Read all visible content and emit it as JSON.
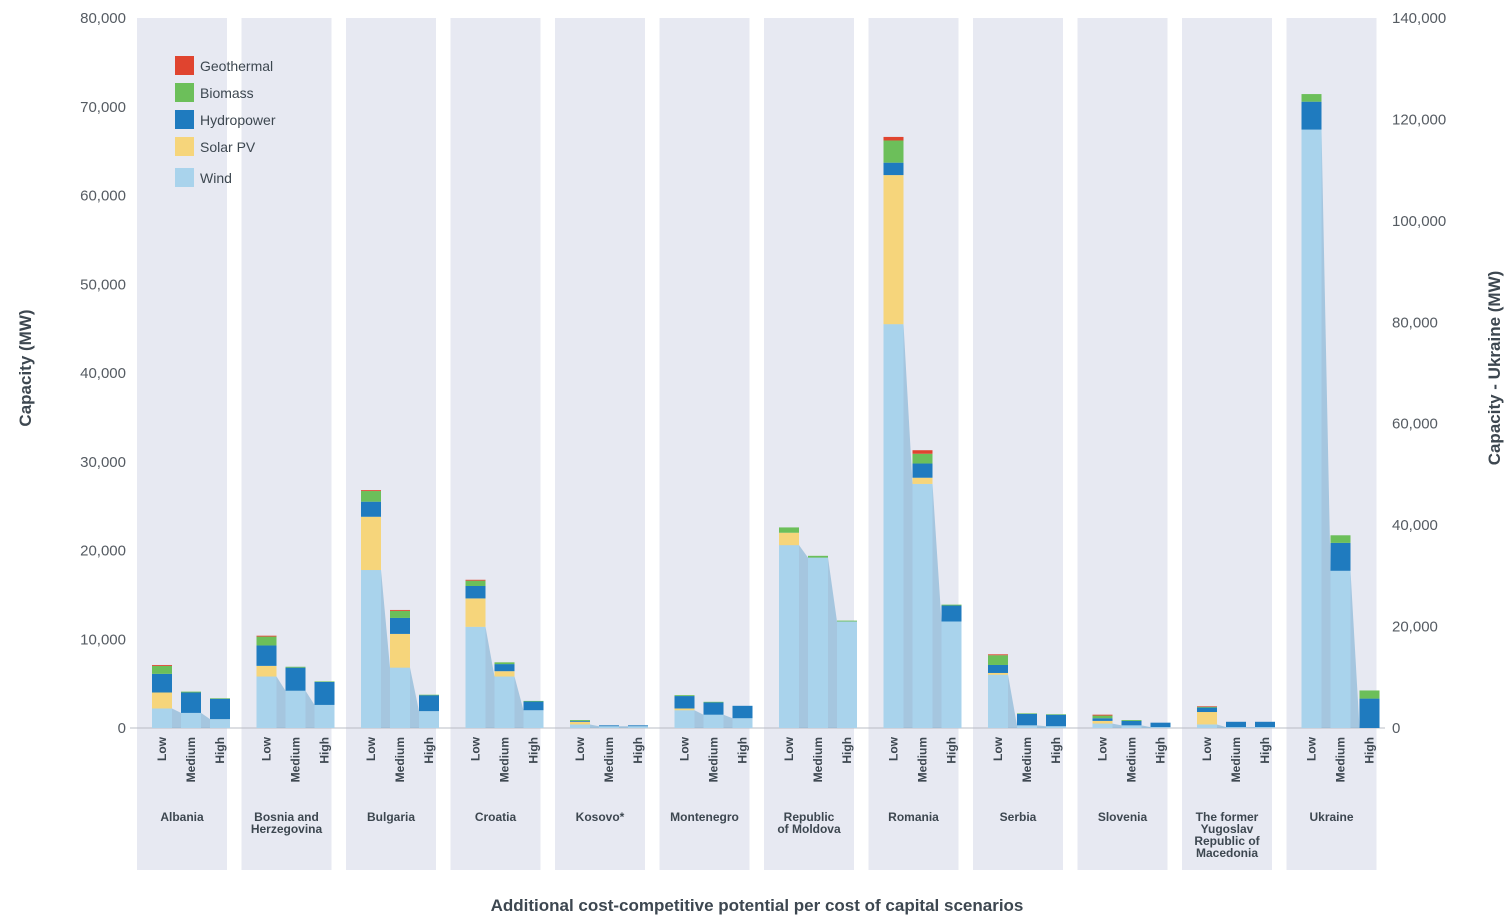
{
  "chart_data": {
    "type": "bar",
    "stacked": true,
    "xlabel": "Additional cost-competitive potential per cost of capital scenarios",
    "ylabel": "Capacity (MW)",
    "ylabel_right": "Capacity - Ukraine (MW)",
    "ylim": [
      0,
      80000
    ],
    "ylim_right": [
      0,
      140000
    ],
    "yticks": [
      "80,000",
      "70,000",
      "60,000",
      "50,000",
      "40,000",
      "30,000",
      "20,000",
      "10,000",
      "0"
    ],
    "yticks_right": [
      "140,000",
      "120,000",
      "100,000",
      "80,000",
      "60,000",
      "40,000",
      "20,000",
      "0"
    ],
    "scenarios": [
      "Low",
      "Medium",
      "High"
    ],
    "legend": {
      "position": "top-left",
      "entries": [
        "Geothermal",
        "Biomass",
        "Hydropower",
        "Solar PV",
        "Wind"
      ]
    },
    "series_colors": {
      "Wind": "#a9d3ec",
      "Solar PV": "#f6d57b",
      "Hydropower": "#1f7bbf",
      "Biomass": "#6cbf5a",
      "Geothermal": "#e0442f"
    },
    "countries": [
      {
        "name": "Albania",
        "label_lines": [
          "Albania"
        ],
        "axis": "left",
        "values": [
          {
            "Wind": 2200,
            "Solar PV": 1800,
            "Hydropower": 2100,
            "Biomass": 900,
            "Geothermal": 100
          },
          {
            "Wind": 1700,
            "Solar PV": 0,
            "Hydropower": 2300,
            "Biomass": 100,
            "Geothermal": 0
          },
          {
            "Wind": 1000,
            "Solar PV": 0,
            "Hydropower": 2300,
            "Biomass": 50,
            "Geothermal": 0
          }
        ]
      },
      {
        "name": "Bosnia and Herzegovina",
        "label_lines": [
          "Bosnia and",
          "Herzegovina"
        ],
        "axis": "left",
        "values": [
          {
            "Wind": 5800,
            "Solar PV": 1200,
            "Hydropower": 2300,
            "Biomass": 1000,
            "Geothermal": 100
          },
          {
            "Wind": 4200,
            "Solar PV": 0,
            "Hydropower": 2600,
            "Biomass": 100,
            "Geothermal": 0
          },
          {
            "Wind": 2600,
            "Solar PV": 0,
            "Hydropower": 2600,
            "Biomass": 50,
            "Geothermal": 0
          }
        ]
      },
      {
        "name": "Bulgaria",
        "label_lines": [
          "Bulgaria"
        ],
        "axis": "left",
        "values": [
          {
            "Wind": 17800,
            "Solar PV": 6000,
            "Hydropower": 1700,
            "Biomass": 1200,
            "Geothermal": 100
          },
          {
            "Wind": 6800,
            "Solar PV": 3800,
            "Hydropower": 1800,
            "Biomass": 800,
            "Geothermal": 100
          },
          {
            "Wind": 1900,
            "Solar PV": 0,
            "Hydropower": 1800,
            "Biomass": 50,
            "Geothermal": 0
          }
        ]
      },
      {
        "name": "Croatia",
        "label_lines": [
          "Croatia"
        ],
        "axis": "left",
        "values": [
          {
            "Wind": 11400,
            "Solar PV": 3200,
            "Hydropower": 1400,
            "Biomass": 600,
            "Geothermal": 100
          },
          {
            "Wind": 5800,
            "Solar PV": 600,
            "Hydropower": 800,
            "Biomass": 200,
            "Geothermal": 0
          },
          {
            "Wind": 2000,
            "Solar PV": 0,
            "Hydropower": 1000,
            "Biomass": 50,
            "Geothermal": 0
          }
        ]
      },
      {
        "name": "Kosovo*",
        "label_lines": [
          "Kosovo*"
        ],
        "axis": "left",
        "values": [
          {
            "Wind": 400,
            "Solar PV": 300,
            "Hydropower": 100,
            "Biomass": 100,
            "Geothermal": 0
          },
          {
            "Wind": 200,
            "Solar PV": 0,
            "Hydropower": 100,
            "Biomass": 0,
            "Geothermal": 0
          },
          {
            "Wind": 200,
            "Solar PV": 0,
            "Hydropower": 100,
            "Biomass": 0,
            "Geothermal": 0
          }
        ]
      },
      {
        "name": "Montenegro",
        "label_lines": [
          "Montenegro"
        ],
        "axis": "left",
        "values": [
          {
            "Wind": 2000,
            "Solar PV": 200,
            "Hydropower": 1400,
            "Biomass": 100,
            "Geothermal": 0
          },
          {
            "Wind": 1500,
            "Solar PV": 0,
            "Hydropower": 1400,
            "Biomass": 50,
            "Geothermal": 0
          },
          {
            "Wind": 1100,
            "Solar PV": 0,
            "Hydropower": 1400,
            "Biomass": 0,
            "Geothermal": 0
          }
        ]
      },
      {
        "name": "Republic of Moldova",
        "label_lines": [
          "Republic",
          "of Moldova"
        ],
        "axis": "left",
        "values": [
          {
            "Wind": 20600,
            "Solar PV": 1400,
            "Hydropower": 0,
            "Biomass": 600,
            "Geothermal": 0
          },
          {
            "Wind": 19200,
            "Solar PV": 0,
            "Hydropower": 0,
            "Biomass": 200,
            "Geothermal": 0
          },
          {
            "Wind": 12000,
            "Solar PV": 0,
            "Hydropower": 0,
            "Biomass": 100,
            "Geothermal": 0
          }
        ]
      },
      {
        "name": "Romania",
        "label_lines": [
          "Romania"
        ],
        "axis": "left",
        "values": [
          {
            "Wind": 45500,
            "Solar PV": 16800,
            "Hydropower": 1400,
            "Biomass": 2500,
            "Geothermal": 400
          },
          {
            "Wind": 27500,
            "Solar PV": 700,
            "Hydropower": 1600,
            "Biomass": 1100,
            "Geothermal": 400
          },
          {
            "Wind": 12000,
            "Solar PV": 0,
            "Hydropower": 1800,
            "Biomass": 100,
            "Geothermal": 0
          }
        ]
      },
      {
        "name": "Serbia",
        "label_lines": [
          "Serbia"
        ],
        "axis": "left",
        "values": [
          {
            "Wind": 6000,
            "Solar PV": 200,
            "Hydropower": 900,
            "Biomass": 1100,
            "Geothermal": 100
          },
          {
            "Wind": 300,
            "Solar PV": 0,
            "Hydropower": 1300,
            "Biomass": 50,
            "Geothermal": 0
          },
          {
            "Wind": 200,
            "Solar PV": 0,
            "Hydropower": 1300,
            "Biomass": 50,
            "Geothermal": 0
          }
        ]
      },
      {
        "name": "Slovenia",
        "label_lines": [
          "Slovenia"
        ],
        "axis": "left",
        "values": [
          {
            "Wind": 500,
            "Solar PV": 300,
            "Hydropower": 300,
            "Biomass": 300,
            "Geothermal": 100
          },
          {
            "Wind": 300,
            "Solar PV": 0,
            "Hydropower": 500,
            "Biomass": 100,
            "Geothermal": 0
          },
          {
            "Wind": 100,
            "Solar PV": 0,
            "Hydropower": 500,
            "Biomass": 0,
            "Geothermal": 0
          }
        ]
      },
      {
        "name": "The former Yugoslav Republic of Macedonia",
        "label_lines": [
          "The former",
          "Yugoslav",
          "Republic of",
          "Macedonia"
        ],
        "axis": "left",
        "values": [
          {
            "Wind": 400,
            "Solar PV": 1400,
            "Hydropower": 500,
            "Biomass": 100,
            "Geothermal": 50
          },
          {
            "Wind": 100,
            "Solar PV": 0,
            "Hydropower": 600,
            "Biomass": 0,
            "Geothermal": 0
          },
          {
            "Wind": 100,
            "Solar PV": 0,
            "Hydropower": 600,
            "Biomass": 0,
            "Geothermal": 0
          }
        ]
      },
      {
        "name": "Ukraine",
        "label_lines": [
          "Ukraine"
        ],
        "axis": "right",
        "values": [
          {
            "Wind": 118000,
            "Solar PV": 0,
            "Hydropower": 5500,
            "Biomass": 1500,
            "Geothermal": 0
          },
          {
            "Wind": 31000,
            "Solar PV": 0,
            "Hydropower": 5500,
            "Biomass": 1500,
            "Geothermal": 0
          },
          {
            "Wind": 0,
            "Solar PV": 0,
            "Hydropower": 5800,
            "Biomass": 1600,
            "Geothermal": 0
          }
        ]
      }
    ]
  }
}
